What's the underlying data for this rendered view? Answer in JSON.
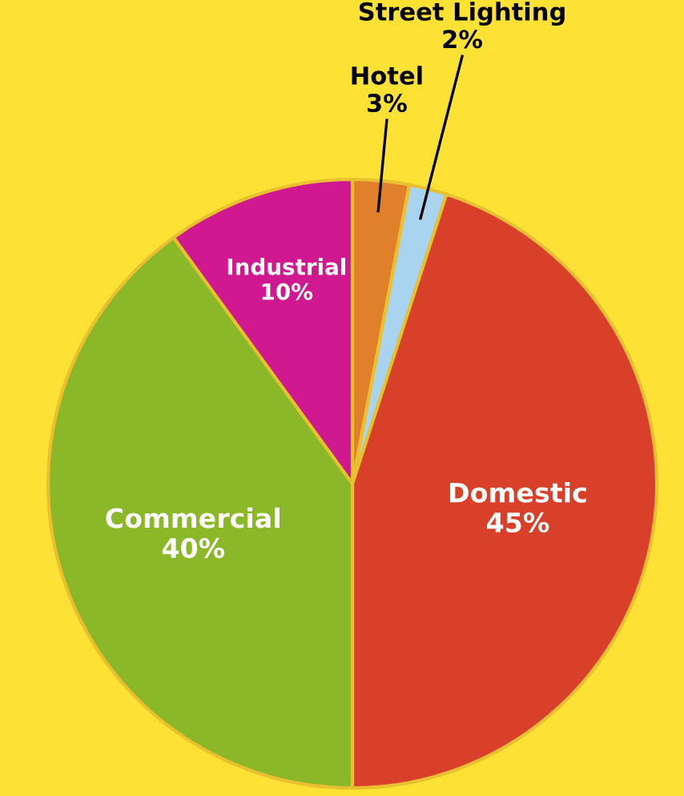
{
  "chart_data": {
    "type": "pie",
    "categories": [
      "Hotel",
      "Street Lighting",
      "Domestic",
      "Commercial",
      "Industrial"
    ],
    "values": [
      3,
      2,
      45,
      40,
      10
    ],
    "value_labels": [
      "3%",
      "2%",
      "45%",
      "40%",
      "10%"
    ],
    "colors": [
      "#e0802a",
      "#a8d4f0",
      "#d8402a",
      "#8ab828",
      "#d01890"
    ]
  }
}
